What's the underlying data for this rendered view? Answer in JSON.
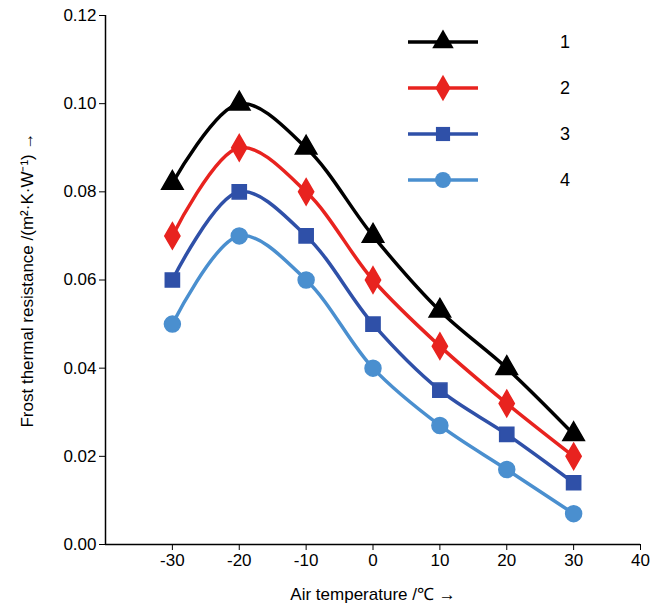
{
  "chart_data": {
    "type": "line",
    "x_label": "Air temperature /℃",
    "y_label": "Frost thermal resistance /(m²·K·W⁻¹)",
    "x": [
      -30,
      -20,
      -10,
      0,
      10,
      20,
      30
    ],
    "series": [
      {
        "name": "1",
        "color": "#000000",
        "marker": "triangle",
        "values": [
          0.082,
          0.1,
          0.09,
          0.07,
          0.053,
          0.04,
          0.025
        ]
      },
      {
        "name": "2",
        "color": "#e8231f",
        "marker": "diamond",
        "values": [
          0.07,
          0.09,
          0.08,
          0.06,
          0.045,
          0.032,
          0.02
        ]
      },
      {
        "name": "3",
        "color": "#2f50a8",
        "marker": "square",
        "values": [
          0.06,
          0.08,
          0.07,
          0.05,
          0.035,
          0.025,
          0.014
        ]
      },
      {
        "name": "4",
        "color": "#4a8fcf",
        "marker": "circle",
        "values": [
          0.05,
          0.07,
          0.06,
          0.04,
          0.027,
          0.017,
          0.007
        ]
      }
    ],
    "xlim": [
      -40,
      40
    ],
    "xticks": [
      -30,
      -20,
      -10,
      0,
      10,
      20,
      30,
      40
    ],
    "ylim": [
      0,
      0.12
    ],
    "yticks": [
      {
        "value": 0,
        "label": "0.00"
      },
      0.02,
      0.04,
      0.06,
      0.08,
      {
        "value": 0.1,
        "label": "0.10"
      },
      0.12
    ],
    "grid": false,
    "legend": "top-right"
  }
}
